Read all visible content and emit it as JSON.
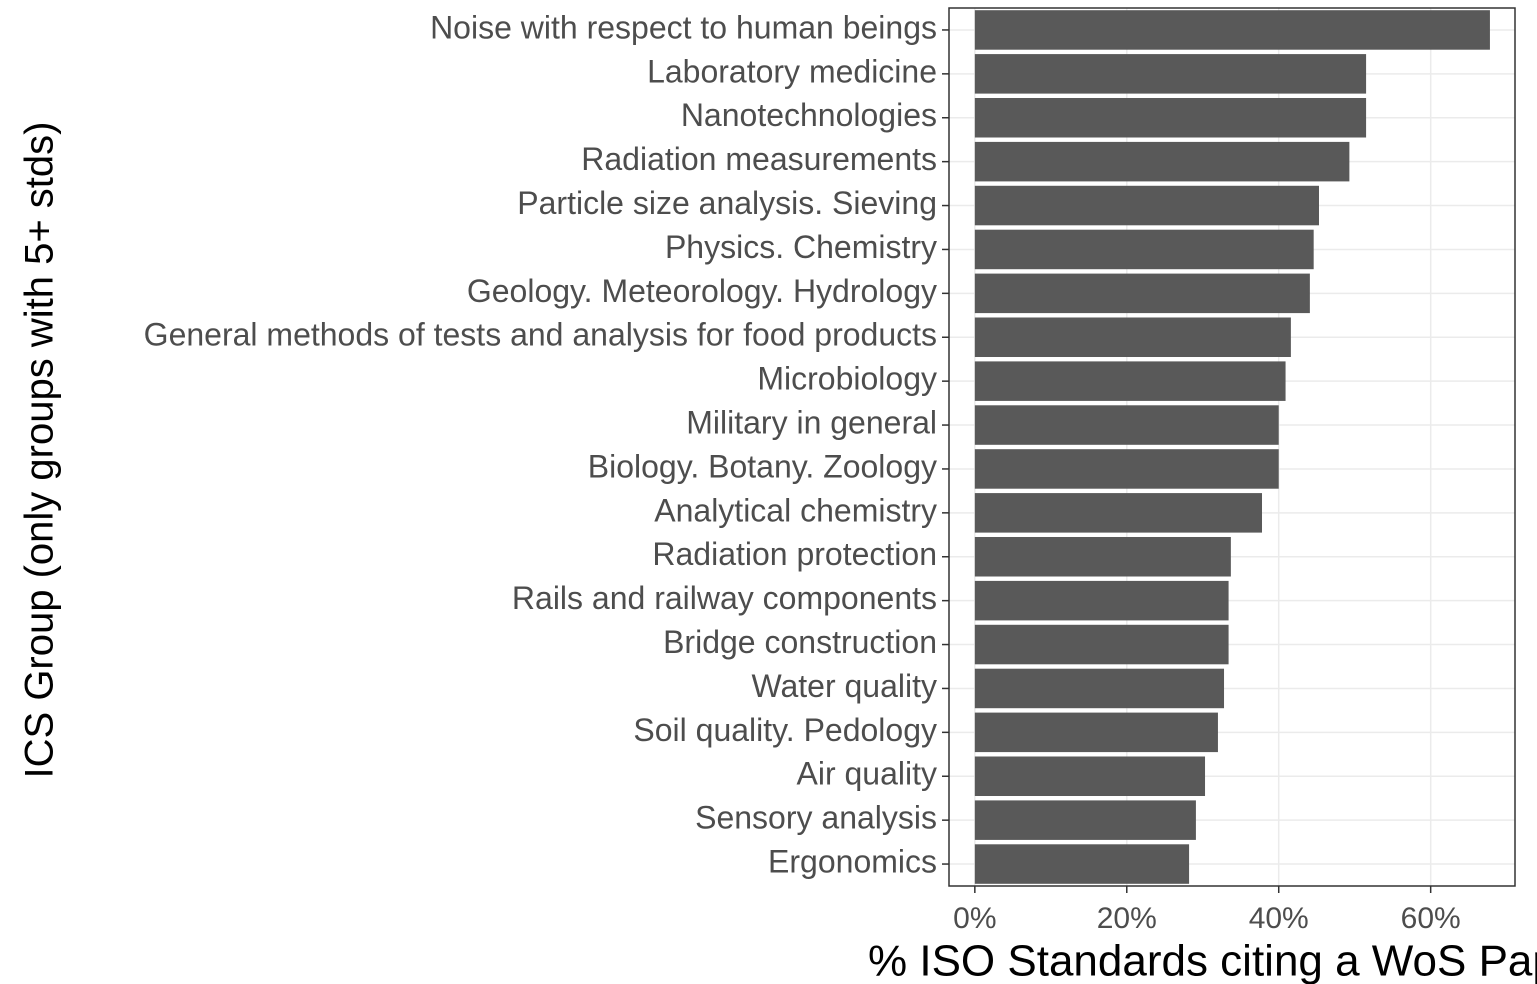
{
  "chart_data": {
    "type": "barh",
    "xlabel": "% ISO Standards citing a WoS Paper",
    "ylabel": "ICS Group (only groups with 5+ stds)",
    "categories": [
      "Noise with respect to human beings",
      "Laboratory medicine",
      "Nanotechnologies",
      "Radiation measurements",
      "Particle size analysis. Sieving",
      "Physics. Chemistry",
      "Geology. Meteorology. Hydrology",
      "General methods of tests and analysis for food products",
      "Microbiology",
      "Military in general",
      "Biology. Botany. Zoology",
      "Analytical chemistry",
      "Radiation protection",
      "Rails and railway components",
      "Bridge construction",
      "Water quality",
      "Soil quality. Pedology",
      "Air quality",
      "Sensory analysis",
      "Ergonomics"
    ],
    "values": [
      67.8,
      51.5,
      51.5,
      49.3,
      45.3,
      44.6,
      44.1,
      41.6,
      40.9,
      40.0,
      40.0,
      37.8,
      33.7,
      33.4,
      33.4,
      32.8,
      32.0,
      30.3,
      29.1,
      28.2
    ],
    "color": "#595959",
    "xlim": [
      -3.4,
      71.1
    ],
    "xticks": [
      {
        "value": 0,
        "label": "0%"
      },
      {
        "value": 20,
        "label": "20%"
      },
      {
        "value": 40,
        "label": "40%"
      },
      {
        "value": 60,
        "label": "60%"
      }
    ],
    "grid": true
  }
}
